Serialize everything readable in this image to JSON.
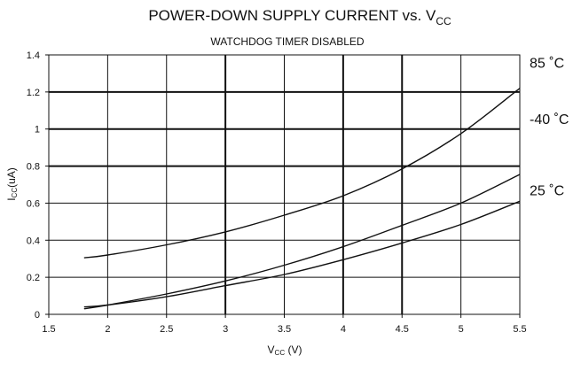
{
  "chart_data": {
    "type": "line",
    "title": {
      "main": "POWER-DOWN SUPPLY CURRENT vs. V",
      "sub": "CC"
    },
    "subtitle": "WATCHDOG TIMER DISABLED",
    "xlabel": {
      "main": "V",
      "sub": "CC",
      "rest": " (V)"
    },
    "ylabel": {
      "main": "I",
      "sub": "CC",
      "rest": "(uA)"
    },
    "xlim": [
      1.5,
      5.5
    ],
    "ylim": [
      0,
      1.4
    ],
    "x_ticks": [
      1.5,
      2,
      2.5,
      3,
      3.5,
      4,
      4.5,
      5,
      5.5
    ],
    "x_tick_labels": [
      "1.5",
      "2",
      "2.5",
      "3",
      "3.5",
      "4",
      "4.5",
      "5",
      "5.5"
    ],
    "y_ticks": [
      0,
      0.2,
      0.4,
      0.6,
      0.8,
      1,
      1.2,
      1.4
    ],
    "y_tick_labels": [
      "0",
      "0.2",
      "0.4",
      "0.6",
      "0.8",
      "1",
      "1.2",
      "1.4"
    ],
    "bold_x_gridlines": [
      3,
      4,
      4.5
    ],
    "bold_y_gridlines": [
      0.8,
      1,
      1.2
    ],
    "grid": true,
    "legend": "labels at right end of each curve",
    "series": [
      {
        "name": "85 ˚C",
        "x": [
          1.8,
          2.0,
          2.5,
          3.0,
          3.5,
          4.0,
          4.5,
          5.0,
          5.5
        ],
        "y": [
          0.305,
          0.32,
          0.375,
          0.445,
          0.535,
          0.64,
          0.785,
          0.975,
          1.22
        ]
      },
      {
        "name": "-40 ˚C",
        "x": [
          1.8,
          2.0,
          2.5,
          3.0,
          3.5,
          4.0,
          4.5,
          5.0,
          5.5
        ],
        "y": [
          0.03,
          0.05,
          0.11,
          0.18,
          0.265,
          0.365,
          0.48,
          0.6,
          0.755
        ]
      },
      {
        "name": "25 ˚C",
        "x": [
          1.8,
          2.0,
          2.5,
          3.0,
          3.5,
          4.0,
          4.5,
          5.0,
          5.5
        ],
        "y": [
          0.04,
          0.05,
          0.095,
          0.155,
          0.215,
          0.295,
          0.385,
          0.485,
          0.61
        ]
      }
    ]
  }
}
